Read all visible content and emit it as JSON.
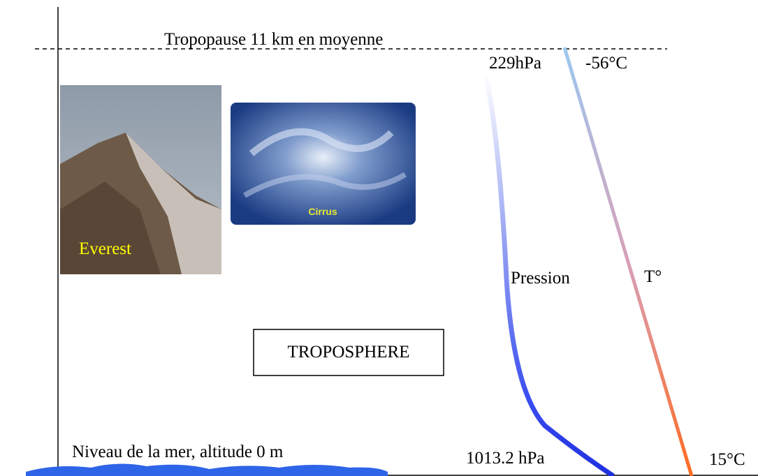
{
  "tropopause": {
    "label": "Tropopause 11 km en moyenne",
    "pressure": "229hPa",
    "temperature": "-56°C"
  },
  "images": [
    {
      "label": "Everest"
    },
    {
      "label": "Cirrus"
    }
  ],
  "curves": [
    {
      "label": "Pression"
    },
    {
      "label": "T°"
    }
  ],
  "layer": {
    "label": "TROPOSPHERE"
  },
  "sea_level": {
    "label": "Niveau de la mer, altitude 0 m",
    "pressure": "1013.2 hPa",
    "temperature": "15°C"
  }
}
